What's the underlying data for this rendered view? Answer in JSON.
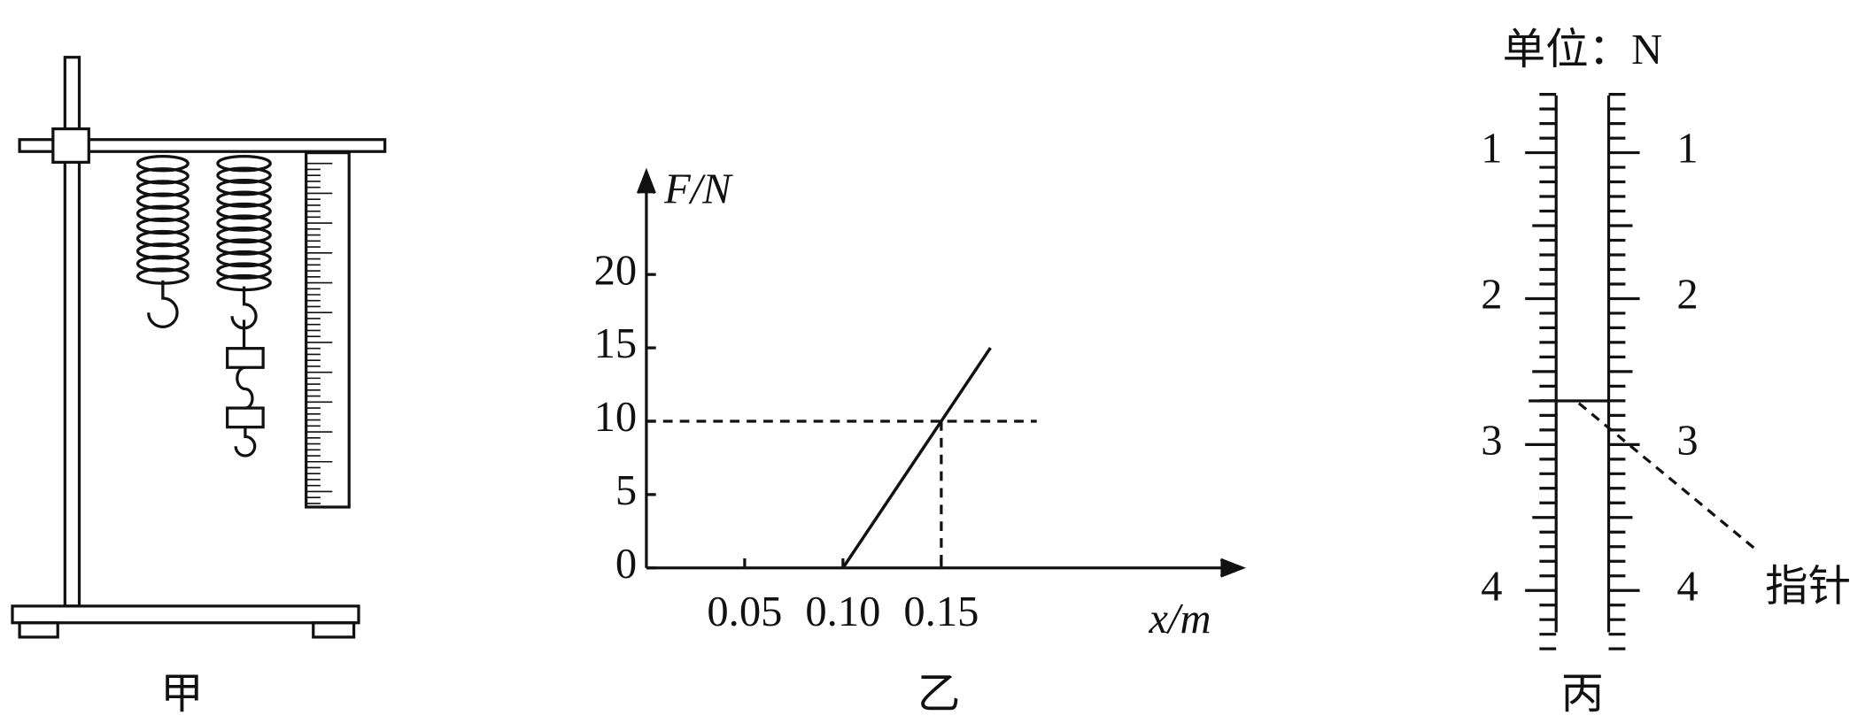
{
  "captions": [
    "甲",
    "乙",
    "丙"
  ],
  "chart_data": {
    "type": "line",
    "x_label": "x/m",
    "y_label": "F/N",
    "x": [
      0.1,
      0.15,
      0.175
    ],
    "values": [
      0,
      10,
      15
    ],
    "xlim": [
      0,
      0.3
    ],
    "ylim": [
      0,
      27
    ],
    "xticks": [
      0.05,
      {
        "value": 0.1,
        "label": "0.10"
      },
      0.15
    ],
    "yticks": [
      0,
      5,
      10,
      15,
      20
    ],
    "color": "#111111"
  },
  "scale": {
    "unit_label": "单位：N",
    "left_labels": [
      1,
      2,
      3,
      4
    ],
    "right_labels": [
      1,
      2,
      3,
      4
    ],
    "pointer_label": "指针"
  }
}
